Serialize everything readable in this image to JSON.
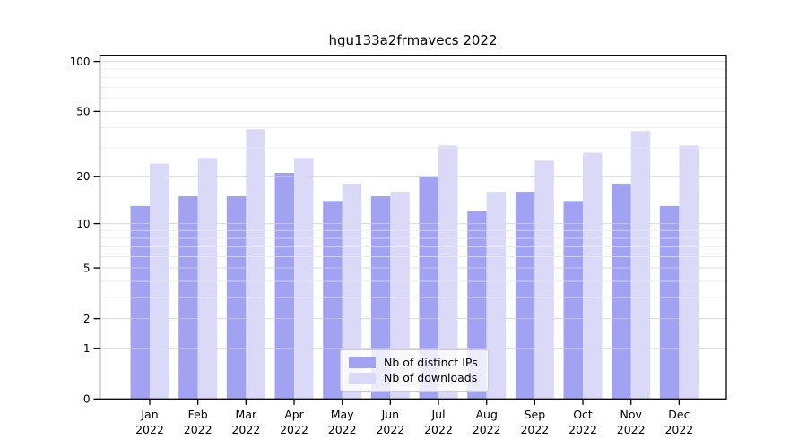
{
  "chart_data": {
    "type": "bar",
    "title": "hgu133a2frmavecs 2022",
    "categories": [
      "Jan",
      "Feb",
      "Mar",
      "Apr",
      "May",
      "Jun",
      "Jul",
      "Aug",
      "Sep",
      "Oct",
      "Nov",
      "Dec"
    ],
    "year": "2022",
    "series": [
      {
        "name": "Nb of distinct IPs",
        "color": "#a2a2f2",
        "values": [
          13,
          15,
          15,
          21,
          14,
          15,
          20,
          12,
          16,
          14,
          18,
          13
        ]
      },
      {
        "name": "Nb of downloads",
        "color": "#dadaf8",
        "values": [
          24,
          26,
          39,
          26,
          18,
          16,
          31,
          16,
          25,
          28,
          38,
          31
        ]
      }
    ],
    "xlabel": "",
    "ylabel": "",
    "yscale": "log1p",
    "ylim": [
      0,
      110
    ],
    "yticks": [
      0,
      1,
      2,
      5,
      10,
      20,
      50,
      100
    ],
    "minor_yticks": [
      3,
      4,
      6,
      7,
      8,
      9,
      30,
      40,
      60,
      70,
      80,
      90
    ],
    "grid": true,
    "legend_position": "inside-bottom-center"
  },
  "colors": {
    "axis": "#000000",
    "text": "#000000",
    "major_grid": "#dcdcdc",
    "minor_grid": "#eeeeee",
    "legend_border": "#cccccc"
  }
}
